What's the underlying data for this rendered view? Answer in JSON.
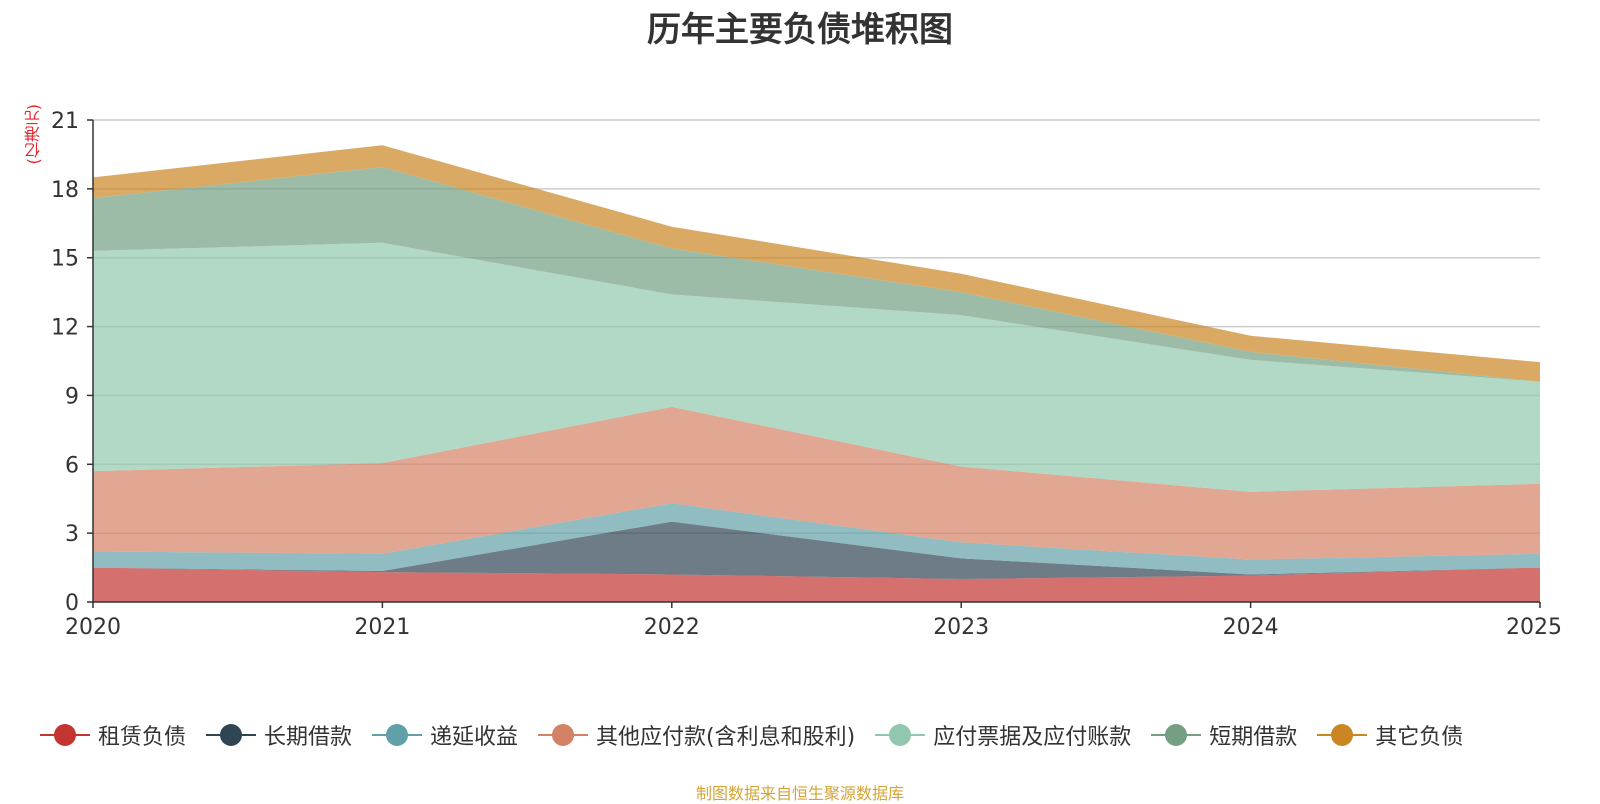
{
  "chart_data": {
    "type": "area",
    "stacked": true,
    "title": "历年主要负债堆积图",
    "unit_label": "(亿港元)",
    "xlabel": "",
    "ylabel": "(亿港元)",
    "categories": [
      "2020",
      "2021",
      "2022",
      "2023",
      "2024",
      "2025"
    ],
    "ylim": [
      0,
      21
    ],
    "yticks": [
      0,
      3,
      6,
      9,
      12,
      15,
      18,
      21
    ],
    "grid": true,
    "legend_position": "bottom",
    "series": [
      {
        "name": "租赁负债",
        "color": "#c23531",
        "values": [
          1.5,
          1.3,
          1.2,
          1.0,
          1.15,
          1.5
        ]
      },
      {
        "name": "长期借款",
        "color": "#2f4554",
        "values": [
          0.0,
          0.05,
          2.3,
          0.9,
          0.05,
          0.0
        ]
      },
      {
        "name": "递延收益",
        "color": "#61a0a8",
        "values": [
          0.7,
          0.75,
          0.8,
          0.7,
          0.65,
          0.6
        ]
      },
      {
        "name": "其他应付款(含利息和股利)",
        "color": "#d48265",
        "values": [
          3.5,
          3.95,
          4.2,
          3.3,
          2.95,
          3.05
        ]
      },
      {
        "name": "应付票据及应付账款",
        "color": "#91c7ae",
        "values": [
          9.6,
          9.6,
          4.9,
          6.6,
          5.75,
          4.45
        ]
      },
      {
        "name": "短期借款",
        "color": "#749f83",
        "values": [
          2.3,
          3.3,
          2.0,
          1.0,
          0.35,
          0.0
        ]
      },
      {
        "name": "其它负债",
        "color": "#ca8622",
        "values": [
          0.9,
          0.95,
          0.95,
          0.8,
          0.7,
          0.85
        ]
      }
    ]
  },
  "source_note": "制图数据来自恒生聚源数据库"
}
